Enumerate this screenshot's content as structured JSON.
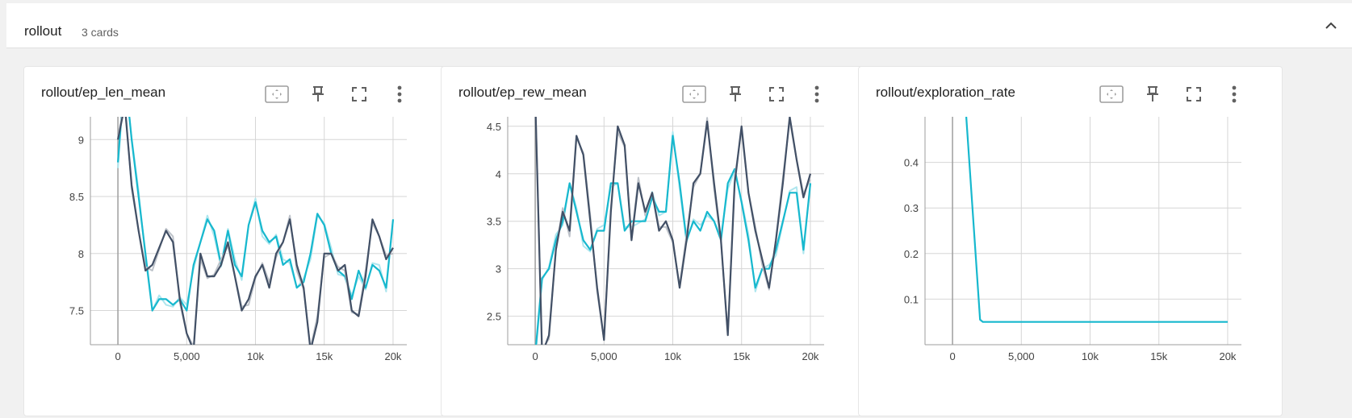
{
  "group": {
    "title": "rollout",
    "count_label": "3 cards"
  },
  "colors": {
    "teal": "#17b8ce",
    "teal_light": "#a5e6ef",
    "navy": "#425066",
    "navy_light": "#c4c9d3",
    "grid": "#d6d6d6",
    "axis": "#9e9e9e",
    "icon": "#616161"
  },
  "cards": [
    {
      "title": "rollout/ep_len_mean"
    },
    {
      "title": "rollout/ep_rew_mean"
    },
    {
      "title": "rollout/exploration_rate"
    }
  ],
  "chart_data": [
    {
      "type": "line",
      "title": "rollout/ep_len_mean",
      "xlim": [
        -2000,
        21000
      ],
      "ylim": [
        7.2,
        9.2
      ],
      "x_ticks": [
        0,
        5000,
        10000,
        15000,
        20000
      ],
      "x_tick_labels": [
        "0",
        "5,000",
        "10k",
        "15k",
        "20k"
      ],
      "y_ticks": [
        7.5,
        8,
        8.5,
        9
      ],
      "y_tick_labels": [
        "7.5",
        "8",
        "8.5",
        "9"
      ],
      "series": [
        {
          "color": "#17b8ce",
          "x": [
            0,
            500,
            1000,
            1500,
            2000,
            2500,
            3000,
            3500,
            4000,
            4500,
            5000,
            5500,
            6000,
            6500,
            7000,
            7500,
            8000,
            8500,
            9000,
            9500,
            10000,
            10500,
            11000,
            11500,
            12000,
            12500,
            13000,
            13500,
            14000,
            14500,
            15000,
            15500,
            16000,
            16500,
            17000,
            17500,
            18000,
            18500,
            19000,
            19500,
            20000
          ],
          "y": [
            8.8,
            9.6,
            9.0,
            8.5,
            8.0,
            7.5,
            7.6,
            7.6,
            7.55,
            7.6,
            7.5,
            7.9,
            8.1,
            8.3,
            8.2,
            7.9,
            8.2,
            7.9,
            7.8,
            8.25,
            8.45,
            8.2,
            8.1,
            8.15,
            7.9,
            7.95,
            7.7,
            7.75,
            8.0,
            8.35,
            8.25,
            8.0,
            7.85,
            7.8,
            7.6,
            7.85,
            7.7,
            7.9,
            7.85,
            7.7,
            8.3
          ]
        },
        {
          "color": "#425066",
          "x": [
            0,
            500,
            1000,
            1500,
            2000,
            2500,
            3000,
            3500,
            4000,
            4500,
            5000,
            5500,
            6000,
            6500,
            7000,
            7500,
            8000,
            8500,
            9000,
            9500,
            10000,
            10500,
            11000,
            11500,
            12000,
            12500,
            13000,
            13500,
            14000,
            14500,
            15000,
            15500,
            16000,
            16500,
            17000,
            17500,
            18000,
            18500,
            19000,
            19500,
            20000
          ],
          "y": [
            9.0,
            9.3,
            8.6,
            8.2,
            7.85,
            7.9,
            8.05,
            8.2,
            8.1,
            7.6,
            7.3,
            7.15,
            8.0,
            7.8,
            7.8,
            7.9,
            8.1,
            7.8,
            7.5,
            7.6,
            7.8,
            7.9,
            7.7,
            8.0,
            8.1,
            8.3,
            7.9,
            7.7,
            7.15,
            7.4,
            8.0,
            8.0,
            7.85,
            7.9,
            7.5,
            7.45,
            7.8,
            8.3,
            8.15,
            7.95,
            8.05
          ]
        }
      ]
    },
    {
      "type": "line",
      "title": "rollout/ep_rew_mean",
      "xlim": [
        -2000,
        21000
      ],
      "ylim": [
        2.2,
        4.6
      ],
      "x_ticks": [
        0,
        5000,
        10000,
        15000,
        20000
      ],
      "x_tick_labels": [
        "0",
        "5,000",
        "10k",
        "15k",
        "20k"
      ],
      "y_ticks": [
        2.5,
        3,
        3.5,
        4,
        4.5
      ],
      "y_tick_labels": [
        "2.5",
        "3",
        "3.5",
        "4",
        "4.5"
      ],
      "series": [
        {
          "color": "#17b8ce",
          "x": [
            0,
            500,
            1000,
            1500,
            2000,
            2500,
            3000,
            3500,
            4000,
            4500,
            5000,
            5500,
            6000,
            6500,
            7000,
            7500,
            8000,
            8500,
            9000,
            9500,
            10000,
            10500,
            11000,
            11500,
            12000,
            12500,
            13000,
            13500,
            14000,
            14500,
            15000,
            15500,
            16000,
            16500,
            17000,
            17500,
            18000,
            18500,
            19000,
            19500,
            20000
          ],
          "y": [
            2.1,
            2.9,
            3.0,
            3.3,
            3.5,
            3.9,
            3.6,
            3.3,
            3.2,
            3.4,
            3.4,
            3.9,
            3.9,
            3.4,
            3.5,
            3.5,
            3.5,
            3.75,
            3.6,
            3.6,
            4.4,
            3.9,
            3.3,
            3.5,
            3.4,
            3.6,
            3.5,
            3.3,
            3.9,
            4.05,
            3.7,
            3.3,
            2.8,
            3.0,
            3.0,
            3.2,
            3.5,
            3.8,
            3.8,
            3.2,
            3.9
          ]
        },
        {
          "color": "#425066",
          "x": [
            0,
            500,
            1000,
            1500,
            2000,
            2500,
            3000,
            3500,
            4000,
            4500,
            5000,
            5500,
            6000,
            6500,
            7000,
            7500,
            8000,
            8500,
            9000,
            9500,
            10000,
            10500,
            11000,
            11500,
            12000,
            12500,
            13000,
            13500,
            14000,
            14500,
            15000,
            15500,
            16000,
            16500,
            17000,
            17500,
            18000,
            18500,
            19000,
            19500,
            20000
          ],
          "y": [
            4.8,
            2.1,
            2.3,
            3.2,
            3.6,
            3.4,
            4.4,
            4.2,
            3.5,
            2.8,
            2.25,
            3.6,
            4.5,
            4.3,
            3.3,
            3.9,
            3.6,
            3.8,
            3.4,
            3.5,
            3.3,
            2.8,
            3.3,
            3.9,
            4.0,
            4.55,
            3.9,
            3.3,
            2.3,
            3.9,
            4.5,
            3.8,
            3.4,
            3.1,
            2.8,
            3.3,
            3.9,
            4.6,
            4.15,
            3.75,
            4.0
          ]
        }
      ]
    },
    {
      "type": "line",
      "title": "rollout/exploration_rate",
      "xlim": [
        -2000,
        21000
      ],
      "ylim": [
        0,
        0.5
      ],
      "x_ticks": [
        0,
        5000,
        10000,
        15000,
        20000
      ],
      "x_tick_labels": [
        "0",
        "5,000",
        "10k",
        "15k",
        "20k"
      ],
      "y_ticks": [
        0.1,
        0.2,
        0.3,
        0.4
      ],
      "y_tick_labels": [
        "0.1",
        "0.2",
        "0.3",
        "0.4"
      ],
      "series": [
        {
          "color": "#17b8ce",
          "x": [
            1000,
            2000,
            2200,
            20000
          ],
          "y": [
            0.5,
            0.055,
            0.05,
            0.05
          ]
        }
      ]
    }
  ]
}
